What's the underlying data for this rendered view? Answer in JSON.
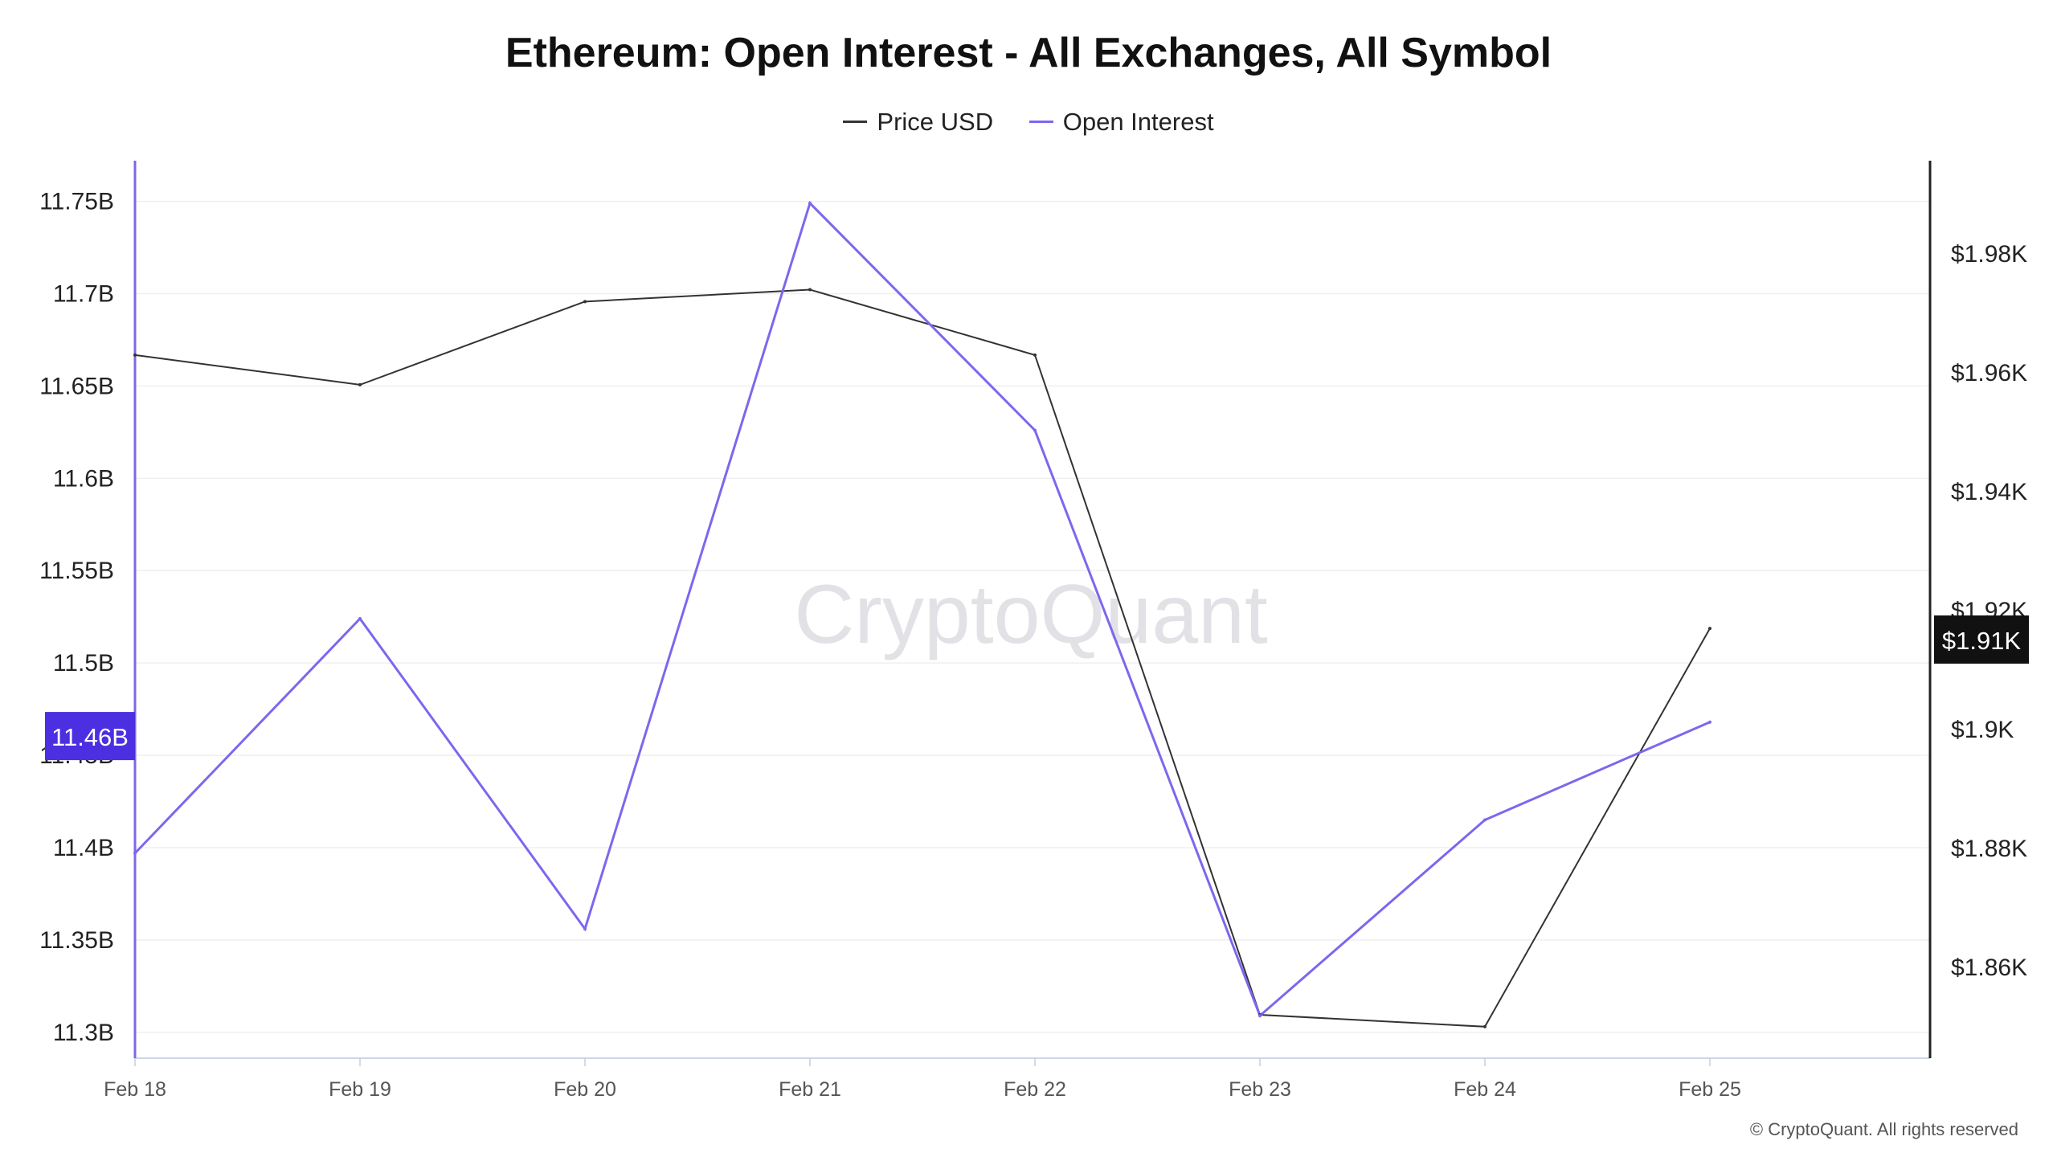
{
  "title": "Ethereum: Open Interest - All Exchanges, All Symbol",
  "watermark": "CryptoQuant",
  "copyright": "© CryptoQuant. All rights reserved",
  "colors": {
    "price": "#333333",
    "open_interest": "#7b68ee",
    "oi_badge": "#4c2fe0",
    "price_badge": "#111111",
    "grid": "#efefef"
  },
  "chart_data": {
    "type": "line",
    "x": [
      "Feb 18",
      "Feb 19",
      "Feb 20",
      "Feb 21",
      "Feb 22",
      "Feb 23",
      "Feb 24",
      "Feb 25"
    ],
    "series": [
      {
        "name": "Price USD",
        "axis": "right",
        "values": [
          1963,
          1958,
          1972,
          1974,
          1963,
          1852,
          1850,
          1917
        ]
      },
      {
        "name": "Open Interest",
        "axis": "left",
        "values": [
          11.397,
          11.524,
          11.356,
          11.749,
          11.626,
          11.309,
          11.415,
          11.468
        ]
      }
    ],
    "left_axis": {
      "ticks": [
        "11.3B",
        "11.35B",
        "11.4B",
        "11.45B",
        "11.5B",
        "11.55B",
        "11.6B",
        "11.65B",
        "11.7B",
        "11.75B"
      ],
      "range": [
        11.286,
        11.772
      ],
      "badge": "11.46B",
      "badge_value": 11.46
    },
    "right_axis": {
      "ticks": [
        "$1.86K",
        "$1.88K",
        "$1.9K",
        "$1.92K",
        "$1.94K",
        "$1.96K",
        "$1.98K"
      ],
      "tick_values": [
        1860,
        1880,
        1900,
        1920,
        1940,
        1960,
        1980
      ],
      "range": [
        1844.7,
        1995.7
      ],
      "badge": "$1.91K",
      "badge_value": 1915
    },
    "legend": [
      "Price USD",
      "Open Interest"
    ],
    "legend_position": "top-center",
    "grid": true
  }
}
